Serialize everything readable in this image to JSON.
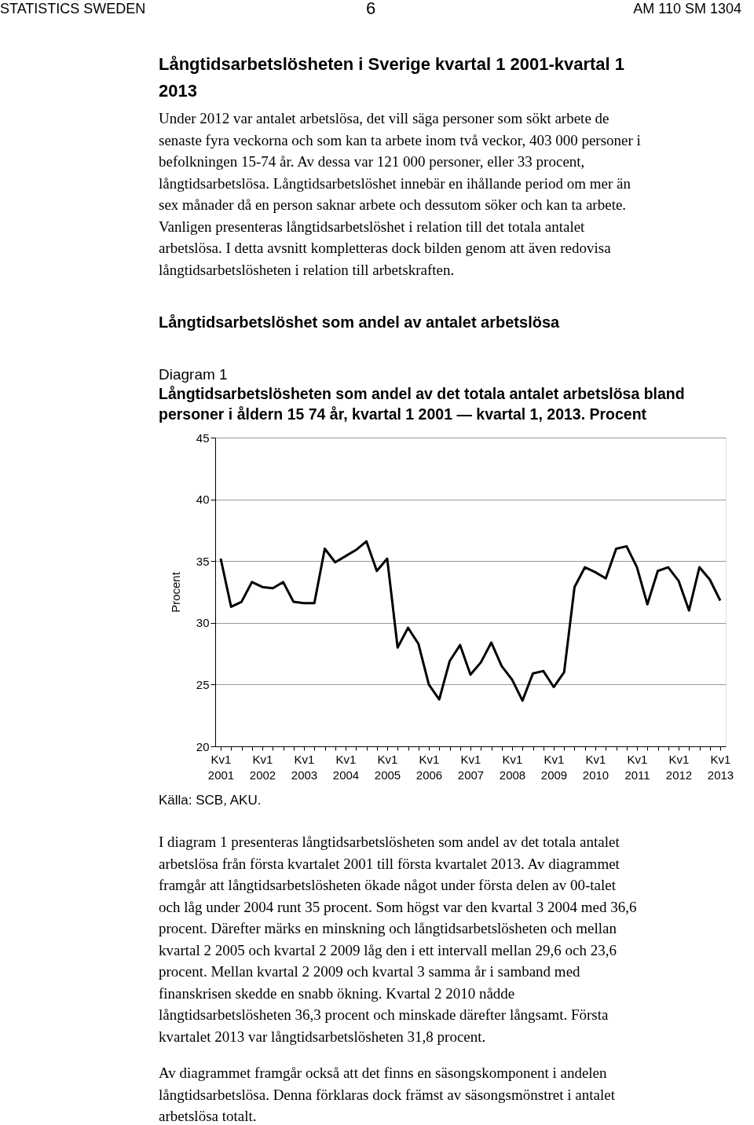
{
  "chart_data": {
    "type": "line",
    "subtitle": "Diagram 1",
    "title": "Långtidsarbetslösheten som andel av det totala antalet arbetslösa bland personer i åldern 15 74 år, kvartal 1 2001 — kvartal 1, 2013. Procent",
    "ylabel": "Procent",
    "categories": [
      "Kv1 2001",
      null,
      null,
      null,
      "Kv1 2002",
      null,
      null,
      null,
      "Kv1 2003",
      null,
      null,
      null,
      "Kv1 2004",
      null,
      null,
      null,
      "Kv1 2005",
      null,
      null,
      null,
      "Kv1 2006",
      null,
      null,
      null,
      "Kv1 2007",
      null,
      null,
      null,
      "Kv1 2008",
      null,
      null,
      null,
      "Kv1 2009",
      null,
      null,
      null,
      "Kv1 2010",
      null,
      null,
      null,
      "Kv1 2011",
      null,
      null,
      null,
      "Kv1 2012",
      null,
      null,
      null,
      "Kv1 2013"
    ],
    "series": [
      {
        "color": "#000000",
        "values": [
          35.2,
          31.3,
          31.7,
          33.3,
          32.9,
          32.8,
          33.3,
          31.7,
          31.6,
          31.6,
          36.0,
          34.9,
          35.4,
          35.9,
          36.6,
          34.2,
          35.2,
          28.0,
          29.6,
          28.3,
          25.0,
          23.8,
          26.9,
          28.2,
          25.8,
          26.8,
          28.4,
          26.5,
          25.4,
          23.7,
          25.9,
          26.1,
          24.8,
          26.0,
          32.9,
          34.5,
          34.1,
          33.6,
          36.0,
          36.2,
          34.5,
          31.5,
          34.2,
          34.5,
          33.4,
          31.0,
          34.5,
          33.5,
          31.8
        ]
      }
    ],
    "ylim": [
      20,
      45
    ],
    "yticks": [
      20,
      25,
      30,
      35,
      40,
      45
    ],
    "grid": "y",
    "legend": false,
    "marker": "none",
    "line_style": "solid",
    "annotations": [
      "STATISTICS SWEDEN",
      "6",
      "AM 110 SM 1304",
      "Långtidsarbetslösheten i Sverige kvartal 1 2001-kvartal 1 2013",
      "Under 2012 var antalet arbetslösa, det vill säga personer som sökt arbete de senaste fyra veckorna och som kan ta arbete inom två veckor, 403 000 personer i befolkningen 15-74 år. Av dessa var 121 000 personer, eller 33 procent, långtidsarbetslösa. Långtidsarbetslöshet innebär en ihållande period om mer än sex månader då en person saknar arbete och dessutom söker och kan ta arbete. Vanligen presenteras långtidsarbetslöshet i relation till det totala antalet arbetslösa. I detta avsnitt kompletteras dock bilden genom att även redovisa långtidsarbetslösheten i relation till arbetskraften.",
      "Långtidsarbetslöshet som andel av antalet arbetslösa",
      "Källa: SCB, AKU.",
      "I diagram 1 presenteras långtidsarbetslösheten som andel av det totala antalet arbetslösa från första kvartalet 2001 till första kvartalet 2013. Av diagrammet framgår att långtidsarbetslösheten ökade något under första delen av 00-talet och låg under 2004 runt 35 procent. Som högst var den kvartal 3 2004 med 36,6 procent. Därefter märks en minskning och långtidsarbetslösheten och mellan kvartal 2 2005 och kvartal 2 2009 låg den i ett intervall mellan 29,6 och 23,6 procent. Mellan kvartal 2 2009 och kvartal 3 samma år i samband med finanskrisen skedde en snabb ökning. Kvartal 2 2010 nådde långtidsarbetslösheten 36,3 procent och minskade därefter långsamt. Första kvartalet 2013 var långtidsarbetslösheten 31,8 procent.",
      "Av diagrammet framgår också att det finns en säsongskomponent i andelen långtidsarbetslösa. Denna förklaras dock främst av säsongsmönstret i antalet arbetslösa totalt."
    ]
  }
}
